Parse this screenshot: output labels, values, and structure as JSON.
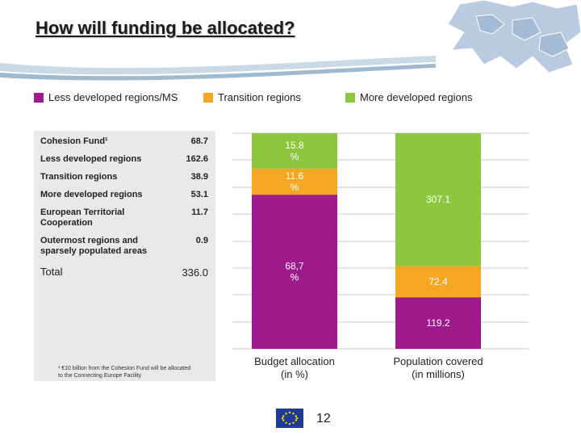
{
  "title": "How will funding be allocated?",
  "legend": [
    {
      "label": "Less developed regions/MS",
      "color": "#9e1a8c"
    },
    {
      "label": "Transition regions",
      "color": "#f5a623"
    },
    {
      "label": "More developed regions",
      "color": "#8dc63f"
    }
  ],
  "table": {
    "rows": [
      {
        "label": "Cohesion Fund¹",
        "value": "68.7"
      },
      {
        "label": "Less developed regions",
        "value": "162.6"
      },
      {
        "label": "Transition regions",
        "value": "38.9"
      },
      {
        "label": "More developed regions",
        "value": "53.1"
      },
      {
        "label": "European Territorial Cooperation",
        "value": "11.7"
      },
      {
        "label": "Outermost regions and sparsely populated areas",
        "value": "0.9"
      }
    ],
    "total": {
      "label": "Total",
      "value": "336.0"
    }
  },
  "footnote": "¹ €10 billion from the Cohesion Fund will be allocated to the Connecting Europe Facility",
  "page_number": "12",
  "chart_data": {
    "type": "bar",
    "stacked": true,
    "categories": [
      "Budget allocation\n(in %)",
      "Population covered\n(in millions)"
    ],
    "series": [
      {
        "name": "Less developed regions/MS",
        "color": "#9e1a8c",
        "values": [
          68.7,
          119.2
        ],
        "labels": [
          "68,7\n%",
          "119.2"
        ]
      },
      {
        "name": "Transition regions",
        "color": "#f5a623",
        "values": [
          11.6,
          72.4
        ],
        "labels": [
          "11.6\n%",
          "72.4"
        ]
      },
      {
        "name": "More developed regions",
        "color": "#8dc63f",
        "values": [
          15.8,
          307.1
        ],
        "labels": [
          "15.8\n%",
          "307.1"
        ]
      }
    ],
    "grid": true,
    "legend_position": "top"
  }
}
